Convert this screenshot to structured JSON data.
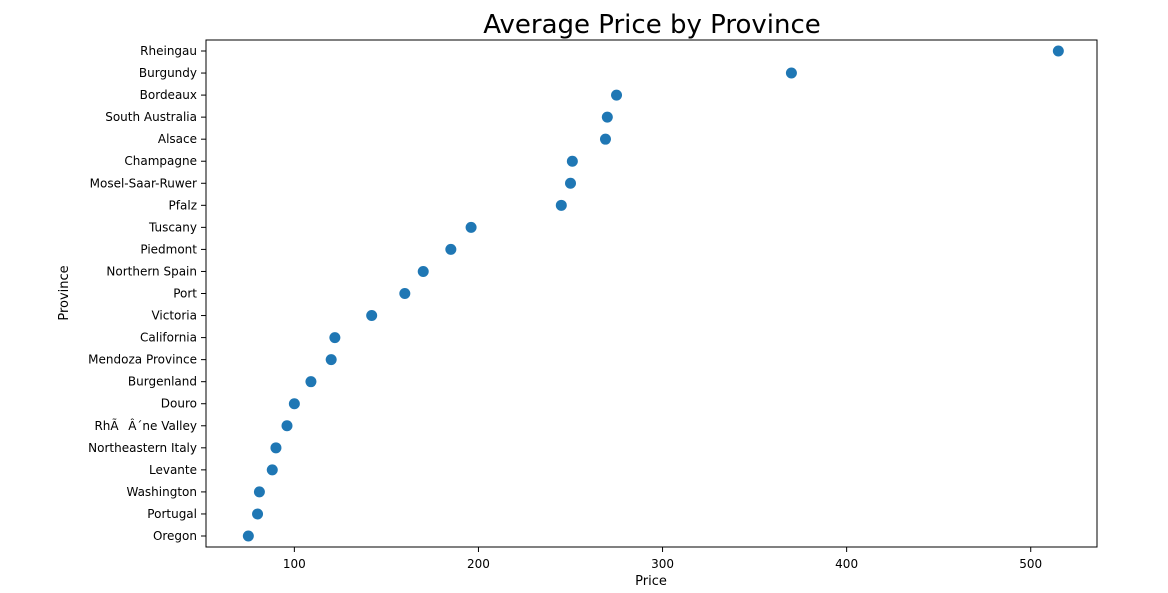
{
  "chart_data": {
    "type": "scatter",
    "title": "Average Price by Province",
    "xlabel": "Price",
    "ylabel": "Province",
    "xlim": [
      52,
      536
    ],
    "xticks": [
      100,
      200,
      300,
      400,
      500
    ],
    "grid": false,
    "legend": "none",
    "marker_color": "#1f77b4",
    "categories": [
      "Rheingau",
      "Burgundy",
      "Bordeaux",
      "South Australia",
      "Alsace",
      "Champagne",
      "Mosel-Saar-Ruwer",
      "Pfalz",
      "Tuscany",
      "Piedmont",
      "Northern Spain",
      "Port",
      "Victoria",
      "California",
      "Mendoza Province",
      "Burgenland",
      "Douro",
      "RhÃÂ´ne Valley",
      "Northeastern Italy",
      "Levante",
      "Washington",
      "Portugal",
      "Oregon"
    ],
    "values": [
      515,
      370,
      275,
      270,
      269,
      251,
      250,
      245,
      196,
      185,
      170,
      160,
      142,
      122,
      120,
      109,
      100,
      96,
      90,
      88,
      81,
      80,
      75
    ]
  }
}
